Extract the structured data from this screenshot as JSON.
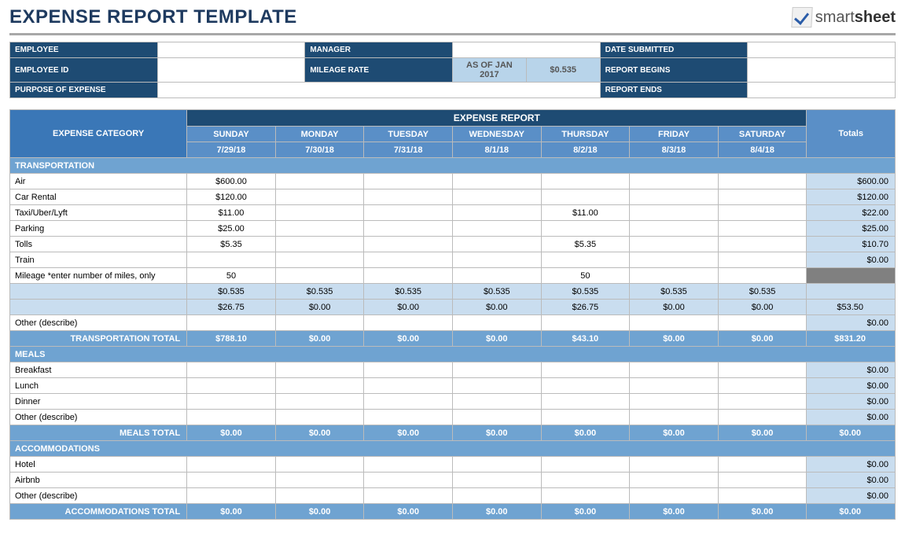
{
  "title": "EXPENSE REPORT TEMPLATE",
  "logo": {
    "text1": "smart",
    "text2": "sheet"
  },
  "colors": {
    "dark_blue": "#1e4b73",
    "mid_blue": "#3a77b7",
    "light_blue": "#5a8fc7",
    "section_blue": "#6fa3d1",
    "pale_blue": "#c9ddef",
    "gray": "#808080",
    "border": "#bbbbbb"
  },
  "info": {
    "employee_label": "EMPLOYEE",
    "employee": "",
    "manager_label": "MANAGER",
    "manager": "",
    "date_submitted_label": "DATE SUBMITTED",
    "date_submitted": "",
    "employee_id_label": "EMPLOYEE ID",
    "employee_id": "",
    "mileage_rate_label": "MILEAGE RATE",
    "mileage_as_of": "AS OF JAN 2017",
    "mileage_rate": "$0.535",
    "report_begins_label": "REPORT BEGINS",
    "report_begins": "",
    "purpose_label": "PURPOSE OF EXPENSE",
    "purpose": "",
    "report_ends_label": "REPORT ENDS",
    "report_ends": ""
  },
  "expense": {
    "report_header": "EXPENSE REPORT",
    "category_header": "EXPENSE CATEGORY",
    "totals_header": "Totals",
    "days": [
      "SUNDAY",
      "MONDAY",
      "TUESDAY",
      "WEDNESDAY",
      "THURSDAY",
      "FRIDAY",
      "SATURDAY"
    ],
    "dates": [
      "7/29/18",
      "7/30/18",
      "7/31/18",
      "8/1/18",
      "8/2/18",
      "8/3/18",
      "8/4/18"
    ],
    "sections": [
      {
        "name": "TRANSPORTATION",
        "rows": [
          {
            "label": "Air",
            "vals": [
              "$600.00",
              "",
              "",
              "",
              "",
              "",
              ""
            ],
            "total": "$600.00"
          },
          {
            "label": "Car Rental",
            "vals": [
              "$120.00",
              "",
              "",
              "",
              "",
              "",
              ""
            ],
            "total": "$120.00"
          },
          {
            "label": "Taxi/Uber/Lyft",
            "vals": [
              "$11.00",
              "",
              "",
              "",
              "$11.00",
              "",
              ""
            ],
            "total": "$22.00"
          },
          {
            "label": "Parking",
            "vals": [
              "$25.00",
              "",
              "",
              "",
              "",
              "",
              ""
            ],
            "total": "$25.00"
          },
          {
            "label": "Tolls",
            "vals": [
              "$5.35",
              "",
              "",
              "",
              "$5.35",
              "",
              ""
            ],
            "total": "$10.70"
          },
          {
            "label": "Train",
            "vals": [
              "",
              "",
              "",
              "",
              "",
              "",
              ""
            ],
            "total": "$0.00"
          },
          {
            "label": "Mileage *enter number of miles, only",
            "vals": [
              "50",
              "",
              "",
              "",
              "50",
              "",
              ""
            ],
            "total": "",
            "gray": true
          },
          {
            "label": "",
            "vals": [
              "$0.535",
              "$0.535",
              "$0.535",
              "$0.535",
              "$0.535",
              "$0.535",
              "$0.535"
            ],
            "total": "",
            "calc": true,
            "gray": true
          },
          {
            "label": "",
            "vals": [
              "$26.75",
              "$0.00",
              "$0.00",
              "$0.00",
              "$26.75",
              "$0.00",
              "$0.00"
            ],
            "total": "$53.50",
            "calc": true
          },
          {
            "label": "Other (describe)",
            "vals": [
              "",
              "",
              "",
              "",
              "",
              "",
              ""
            ],
            "total": "$0.00"
          }
        ],
        "subtotal": {
          "label": "TRANSPORTATION TOTAL",
          "vals": [
            "$788.10",
            "$0.00",
            "$0.00",
            "$0.00",
            "$43.10",
            "$0.00",
            "$0.00"
          ],
          "total": "$831.20"
        }
      },
      {
        "name": "MEALS",
        "rows": [
          {
            "label": "Breakfast",
            "vals": [
              "",
              "",
              "",
              "",
              "",
              "",
              ""
            ],
            "total": "$0.00"
          },
          {
            "label": "Lunch",
            "vals": [
              "",
              "",
              "",
              "",
              "",
              "",
              ""
            ],
            "total": "$0.00"
          },
          {
            "label": "Dinner",
            "vals": [
              "",
              "",
              "",
              "",
              "",
              "",
              ""
            ],
            "total": "$0.00"
          },
          {
            "label": "Other (describe)",
            "vals": [
              "",
              "",
              "",
              "",
              "",
              "",
              ""
            ],
            "total": "$0.00"
          }
        ],
        "subtotal": {
          "label": "MEALS TOTAL",
          "vals": [
            "$0.00",
            "$0.00",
            "$0.00",
            "$0.00",
            "$0.00",
            "$0.00",
            "$0.00"
          ],
          "total": "$0.00"
        }
      },
      {
        "name": "ACCOMMODATIONS",
        "rows": [
          {
            "label": "Hotel",
            "vals": [
              "",
              "",
              "",
              "",
              "",
              "",
              ""
            ],
            "total": "$0.00"
          },
          {
            "label": "Airbnb",
            "vals": [
              "",
              "",
              "",
              "",
              "",
              "",
              ""
            ],
            "total": "$0.00"
          },
          {
            "label": "Other (describe)",
            "vals": [
              "",
              "",
              "",
              "",
              "",
              "",
              ""
            ],
            "total": "$0.00"
          }
        ],
        "subtotal": {
          "label": "ACCOMMODATIONS TOTAL",
          "vals": [
            "$0.00",
            "$0.00",
            "$0.00",
            "$0.00",
            "$0.00",
            "$0.00",
            "$0.00"
          ],
          "total": "$0.00"
        }
      }
    ]
  }
}
